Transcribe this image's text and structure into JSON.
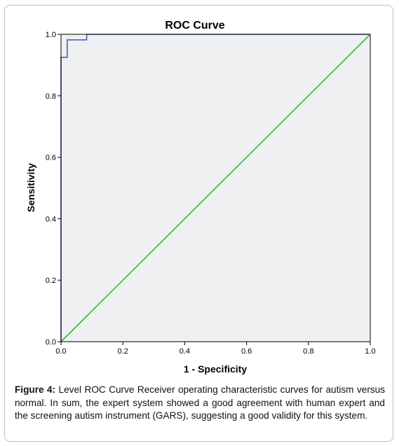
{
  "chart_data": {
    "type": "line",
    "title": "ROC Curve",
    "xlabel": "1 - Specificity",
    "ylabel": "Sensitivity",
    "xlim": [
      0.0,
      1.0
    ],
    "ylim": [
      0.0,
      1.0
    ],
    "x_ticks": [
      "0.0",
      "0.2",
      "0.4",
      "0.6",
      "0.8",
      "1.0"
    ],
    "y_ticks": [
      "0.0",
      "0.2",
      "0.4",
      "0.6",
      "0.8",
      "1.0"
    ],
    "grid": false,
    "series": [
      {
        "color": "#4a66b0",
        "step": true,
        "x": [
          0.0,
          0.0,
          0.02,
          0.02,
          0.083,
          0.083,
          1.0
        ],
        "y": [
          0.0,
          0.925,
          0.925,
          0.982,
          0.982,
          1.0,
          1.0
        ]
      },
      {
        "color": "#3cb43c",
        "step": false,
        "x": [
          0.0,
          1.0
        ],
        "y": [
          0.0,
          1.0
        ]
      }
    ],
    "colors": {
      "plot_background": "#eff0f2",
      "axis": "#000000"
    }
  },
  "caption": {
    "label": "Figure 4:",
    "text": " Level ROC Curve Receiver operating characteristic curves for autism versus normal. In sum, the expert system showed a good agreement with human expert and the screening autism instrument (GARS), suggesting a good validity for this system."
  }
}
